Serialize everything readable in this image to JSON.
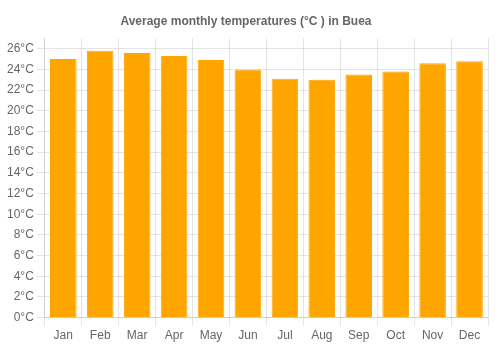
{
  "chart_data": {
    "type": "bar",
    "title": "Average monthly temperatures (°C ) in Buea",
    "categories": [
      "Jan",
      "Feb",
      "Mar",
      "Apr",
      "May",
      "Jun",
      "Jul",
      "Aug",
      "Sep",
      "Oct",
      "Nov",
      "Dec"
    ],
    "values": [
      25.0,
      25.8,
      25.6,
      25.3,
      24.9,
      24.0,
      23.1,
      23.0,
      23.5,
      23.8,
      24.6,
      24.8
    ],
    "color": "#FFA500",
    "ylim": [
      0,
      27
    ],
    "yticks": [
      {
        "value": 0,
        "label": "0°C"
      },
      {
        "value": 2,
        "label": "2°C"
      },
      {
        "value": 4,
        "label": "4°C"
      },
      {
        "value": 6,
        "label": "6°C"
      },
      {
        "value": 8,
        "label": "8°C"
      },
      {
        "value": 10,
        "label": "10°C"
      },
      {
        "value": 12,
        "label": "12°C"
      },
      {
        "value": 14,
        "label": "14°C"
      },
      {
        "value": 16,
        "label": "16°C"
      },
      {
        "value": 18,
        "label": "18°C"
      },
      {
        "value": 20,
        "label": "20°C"
      },
      {
        "value": 22,
        "label": "22°C"
      },
      {
        "value": 24,
        "label": "24°C"
      },
      {
        "value": 26,
        "label": "26°C"
      }
    ],
    "grid": true
  }
}
